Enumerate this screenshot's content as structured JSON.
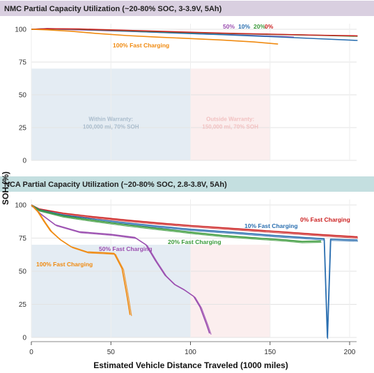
{
  "chart_data": [
    {
      "type": "line",
      "title": "NMC Partial Capacity Utilization (~20-80% SOC, 3-3.9V, 5Ah)",
      "xlabel": "Estimated Vehicle Distance Traveled (1000 miles)",
      "ylabel": "SOH (%)",
      "xlim": [
        0,
        210
      ],
      "ylim": [
        0,
        100
      ],
      "xticks": [
        "0",
        "50",
        "100",
        "150",
        "200"
      ],
      "yticks": [
        "0",
        "25",
        "50",
        "75",
        "100"
      ],
      "colors": {
        "50": "#9b4fb0",
        "10": "#2a6fb0",
        "20": "#3a9a3a",
        "0": "#cc2222",
        "100": "#f08a10"
      },
      "regions": [
        {
          "label": "Within Warranty:",
          "sublabel": "100,000 mi, 70% SOH",
          "x": [
            0,
            100
          ],
          "y": [
            0,
            70
          ],
          "fill": "#e4ecf3",
          "color": "#a9bccc"
        },
        {
          "label": "Outside Warranty:",
          "sublabel": "150,000 mi, 70% SOH",
          "x": [
            100,
            150
          ],
          "y": [
            0,
            70
          ],
          "fill": "#fbeeee",
          "color": "#f1c1c1"
        }
      ],
      "series": [
        {
          "name": "50%",
          "color": "#9b4fb0",
          "x": [
            0,
            10,
            30,
            60,
            90,
            110,
            130,
            145,
            160,
            165
          ],
          "y": [
            100,
            100.2,
            99.6,
            98.5,
            97.3,
            96.4,
            95.7,
            95,
            94.3,
            94
          ]
        },
        {
          "name": "10%",
          "color": "#2a6fb0",
          "x": [
            0,
            10,
            30,
            60,
            90,
            120,
            150,
            180,
            205
          ],
          "y": [
            100,
            100.5,
            100,
            98.6,
            97.2,
            95.9,
            94.4,
            92.8,
            91.5
          ]
        },
        {
          "name": "20%",
          "color": "#3a9a3a",
          "x": [
            0,
            10,
            30,
            60,
            90,
            120,
            150,
            180,
            205
          ],
          "y": [
            100,
            100.3,
            100,
            99,
            97.8,
            96.9,
            96.1,
            95.4,
            94.7
          ]
        },
        {
          "name": "0%",
          "color": "#cc2222",
          "x": [
            0,
            10,
            30,
            60,
            90,
            120,
            150,
            180,
            205
          ],
          "y": [
            100,
            100.4,
            100.2,
            99.2,
            98.1,
            97.1,
            96.3,
            95.5,
            95
          ]
        },
        {
          "name": "100% Fast Charging",
          "color": "#f08a10",
          "x": [
            0,
            10,
            25,
            40,
            60,
            80,
            100,
            120,
            140,
            155
          ],
          "y": [
            100,
            99.6,
            98.5,
            96.9,
            95.2,
            94,
            92.9,
            91.8,
            90.3,
            88.7
          ]
        }
      ],
      "labels": [
        {
          "text": "50%",
          "color": "#9b4fb0"
        },
        {
          "text": "10%",
          "color": "#2a6fb0"
        },
        {
          "text": "20%",
          "color": "#3a9a3a"
        },
        {
          "text": "0%",
          "color": "#cc2222"
        },
        {
          "text": "100% Fast Charging",
          "color": "#f08a10"
        }
      ]
    },
    {
      "type": "line",
      "title": "NCA Partial Capacity Utilization (~20-80% SOC, 2.8-3.8V, 5Ah)",
      "xlabel": "Estimated Vehicle Distance Traveled (1000 miles)",
      "ylabel": "SOH (%)",
      "xlim": [
        0,
        210
      ],
      "ylim": [
        0,
        100
      ],
      "xticks": [
        "0",
        "50",
        "100",
        "150",
        "200"
      ],
      "yticks": [
        "0",
        "25",
        "50",
        "75",
        "100"
      ],
      "regions": [
        {
          "x": [
            0,
            100
          ],
          "y": [
            0,
            70
          ],
          "fill": "#e4ecf3"
        },
        {
          "x": [
            100,
            150
          ],
          "y": [
            0,
            70
          ],
          "fill": "#fbeeee"
        }
      ],
      "series": [
        {
          "name": "0% Fast Charging",
          "color": "#cc2222",
          "x": [
            0,
            5,
            20,
            40,
            60,
            80,
            100,
            130,
            160,
            180,
            204,
            205
          ],
          "y": [
            100,
            97,
            93.8,
            91,
            88.6,
            86.4,
            84.5,
            82,
            79.5,
            77.8,
            76,
            76
          ]
        },
        {
          "name": "10% Fast Charging",
          "color": "#2a6fb0",
          "x": [
            0,
            5,
            20,
            40,
            60,
            80,
            100,
            130,
            150,
            170,
            184,
            186,
            188,
            205
          ],
          "y": [
            100,
            96.5,
            92.5,
            89.2,
            86.4,
            83.9,
            81.7,
            79.1,
            77.2,
            75.6,
            74.5,
            0,
            74.2,
            73.6
          ]
        },
        {
          "name": "20% Fast Charging",
          "color": "#3a9a3a",
          "x": [
            0,
            5,
            20,
            40,
            60,
            80,
            100,
            120,
            140,
            160,
            170,
            182
          ],
          "y": [
            100,
            96.3,
            91.8,
            88.2,
            85,
            82.2,
            79.4,
            77,
            75.2,
            73.6,
            72.5,
            72.8
          ]
        },
        {
          "name": "50% Fast Charging",
          "color": "#9b4fb0",
          "x": [
            0,
            5,
            15,
            30,
            50,
            65,
            72,
            78,
            84,
            90,
            96,
            102,
            106,
            110,
            112
          ],
          "y": [
            100,
            94,
            85,
            79.8,
            77.8,
            75.5,
            70,
            58,
            47,
            40,
            36,
            31,
            23,
            10,
            3
          ]
        },
        {
          "name": "100% Fast Charging",
          "color": "#f08a10",
          "x": [
            0,
            4,
            8,
            12,
            18,
            25,
            35,
            45,
            52,
            57,
            60,
            62
          ],
          "y": [
            100,
            95,
            87.5,
            80.5,
            74,
            68.5,
            64.5,
            64,
            63.5,
            52,
            32,
            17
          ]
        }
      ],
      "labels": [
        {
          "text": "0% Fast Charging",
          "color": "#cc2222"
        },
        {
          "text": "10% Fast Charging",
          "color": "#2a6fb0"
        },
        {
          "text": "20% Fast Charging",
          "color": "#3a9a3a"
        },
        {
          "text": "50% Fast Charging",
          "color": "#9b4fb0"
        },
        {
          "text": "100% Fast Charging",
          "color": "#f08a10"
        }
      ]
    }
  ]
}
